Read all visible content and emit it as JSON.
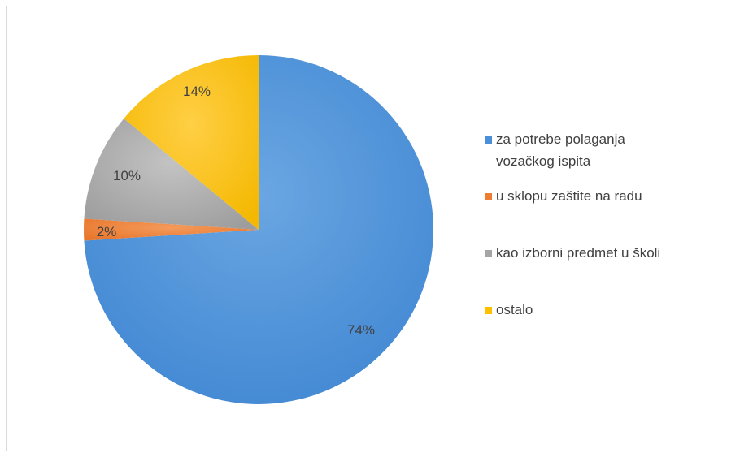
{
  "chart_data": {
    "type": "pie",
    "title": "",
    "categories": [
      "za potrebe polaganja vozačkog ispita",
      "u sklopu zaštite na radu",
      "kao izborni predmet u školi",
      "ostalo"
    ],
    "values": [
      74,
      2,
      10,
      14
    ],
    "labels": [
      "74%",
      "2%",
      "10%",
      "14%"
    ],
    "colors": [
      "#4A8FD8",
      "#ED7D31",
      "#A5A5A5",
      "#FFC000"
    ],
    "legend_position": "right",
    "start_angle_deg": 0,
    "direction": "clockwise"
  },
  "legend": {
    "items": [
      {
        "label_line1": "za potrebe polaganja",
        "label_line2": "vozačkog ispita",
        "color": "#4A8FD8"
      },
      {
        "label_line1": "u sklopu zaštite na radu",
        "label_line2": "",
        "color": "#ED7D31"
      },
      {
        "label_line1": "kao izborni predmet u školi",
        "label_line2": "",
        "color": "#A5A5A5"
      },
      {
        "label_line1": "ostalo",
        "label_line2": "",
        "color": "#FFC000"
      }
    ]
  }
}
